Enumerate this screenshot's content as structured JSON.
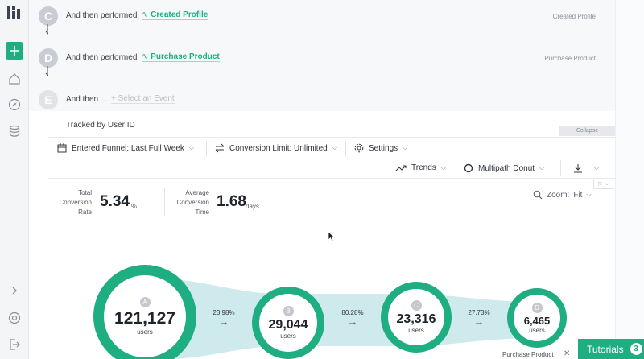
{
  "steps": [
    {
      "letter": "C",
      "text": "And then performed",
      "event": "Created Profile",
      "right_label": "Created Profile"
    },
    {
      "letter": "D",
      "text": "And then performed",
      "event": "Purchase Product",
      "right_label": "Purchase Product"
    },
    {
      "letter": "E",
      "text": "And then ...",
      "placeholder": "Select an Event"
    }
  ],
  "tracked_by": "Tracked by User ID",
  "collapse_label": "Collapse",
  "toolbar": {
    "funnel_range": "Entered Funnel: Last Full Week",
    "conversion_limit": "Conversion Limit: Unlimited",
    "settings": "Settings",
    "trends": "Trends",
    "chart_type": "Multipath Donut"
  },
  "stats": {
    "total_label_1": "Total",
    "total_label_2": "Conversion",
    "total_label_3": "Rate",
    "total_value": "5.34",
    "total_unit": "%",
    "avg_label_1": "Average",
    "avg_label_2": "Conversion",
    "avg_label_3": "Time",
    "avg_value": "1.68",
    "avg_unit": "days"
  },
  "zoom": {
    "label": "Zoom:",
    "value": "Fit"
  },
  "funnel": {
    "nodes": [
      {
        "letter": "A",
        "value": "121,127",
        "unit": "users"
      },
      {
        "letter": "B",
        "value": "29,044",
        "unit": "users"
      },
      {
        "letter": "C",
        "value": "23,316",
        "unit": "users"
      },
      {
        "letter": "D",
        "value": "6,465",
        "unit": "users"
      }
    ],
    "rates": [
      "23.98%",
      "80.28%",
      "27.73%"
    ]
  },
  "bottom_label": "Purchase Product",
  "tutorials": {
    "label": "Tutorials",
    "count": "3"
  },
  "colors": {
    "accent": "#1fad82",
    "band": "#cfeaed"
  }
}
